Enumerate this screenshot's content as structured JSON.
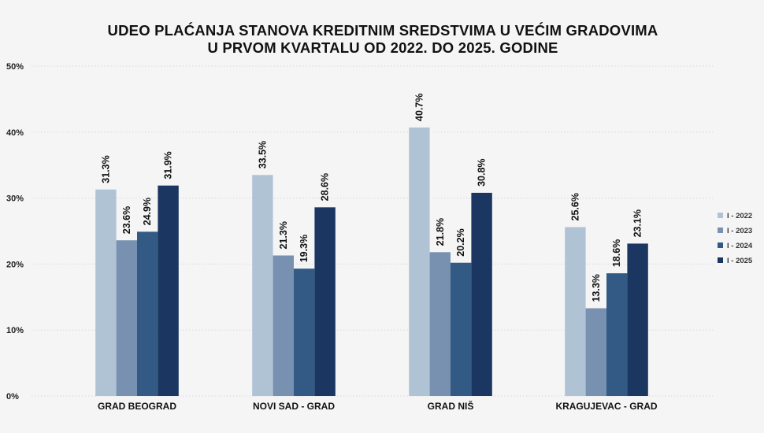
{
  "chart_data": {
    "type": "bar",
    "title_lines": [
      "UDEO PLAĆANJA STANOVA KREDITNIM SREDSTVIMA U VEĆIM GRADOVIMA",
      "U PRVOM KVARTALU OD 2022. DO 2025. GODINE"
    ],
    "categories": [
      "GRAD BEOGRAD",
      "NOVI SAD - GRAD",
      "GRAD NIŠ",
      "KRAGUJEVAC - GRAD"
    ],
    "series": [
      {
        "name": "I - 2022",
        "color": "#b0c3d5",
        "values": [
          31.3,
          33.5,
          40.7,
          25.6
        ]
      },
      {
        "name": "I - 2023",
        "color": "#7891b0",
        "values": [
          23.6,
          21.3,
          21.8,
          13.3
        ]
      },
      {
        "name": "I - 2024",
        "color": "#335a84",
        "values": [
          24.9,
          19.3,
          20.2,
          18.6
        ]
      },
      {
        "name": "I - 2025",
        "color": "#1b3660",
        "values": [
          31.9,
          28.6,
          30.8,
          23.1
        ]
      }
    ],
    "data_labels": [
      [
        "31.3%",
        "23.6%",
        "24.9%",
        "31.9%"
      ],
      [
        "33.5%",
        "21.3%",
        "19.3%",
        "28.6%"
      ],
      [
        "40.7%",
        "21.8%",
        "20.2%",
        "30.8%"
      ],
      [
        "25.6%",
        "13.3%",
        "18.6%",
        "23.1%"
      ]
    ],
    "y_ticks": [
      0,
      10,
      20,
      30,
      40,
      50
    ],
    "y_tick_labels": [
      "0%",
      "10%",
      "20%",
      "30%",
      "40%",
      "50%"
    ],
    "ylim": [
      0,
      50
    ],
    "grid": true,
    "legend_position": "right"
  }
}
